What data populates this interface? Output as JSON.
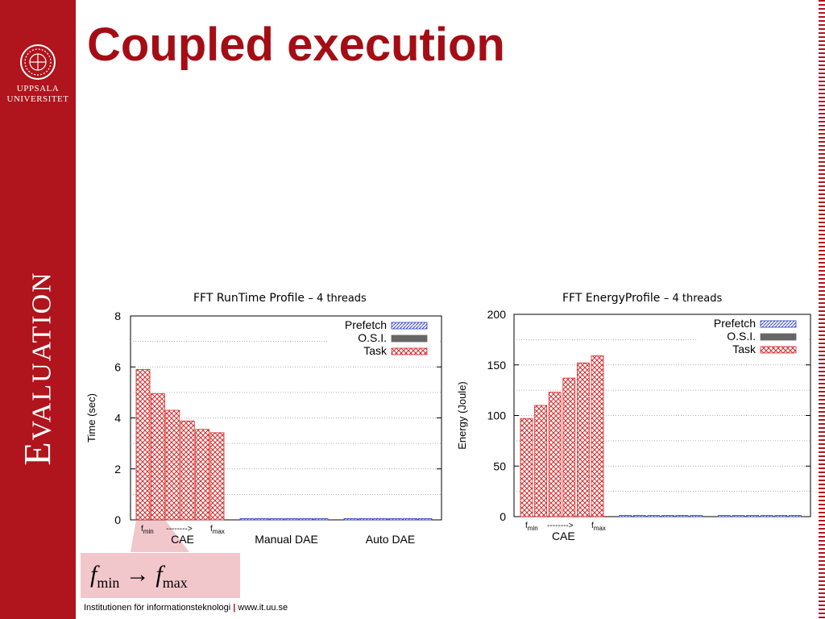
{
  "slide": {
    "title": "Coupled execution",
    "section": "Evaluation",
    "university_line1": "UPPSALA",
    "university_line2": "UNIVERSITET",
    "footer_text": "Institutionen för informationsteknologi",
    "footer_sep": "|",
    "footer_url": "www.it.uu.se",
    "callout": {
      "f": "f",
      "min": "min",
      "max": "max",
      "arrow": "→"
    },
    "accent_color": "#b0141c",
    "title_color": "#a50d15"
  },
  "chart_data": [
    {
      "type": "bar",
      "title": "FFT RunTime Profile",
      "subtitle": "– 4 threads",
      "ylabel": "Time (sec)",
      "ylim": [
        0,
        8
      ],
      "yticks": [
        "0",
        "2",
        "4",
        "6",
        "8"
      ],
      "ytick_values": [
        0,
        2,
        4,
        6,
        8
      ],
      "groups": [
        {
          "label": "CAE",
          "count": 6,
          "sub_start": "f",
          "sub_start_sub": "min",
          "sub_arrow": "-------->",
          "sub_end": "f",
          "sub_end_sub": "max"
        },
        {
          "label": "Manual DAE",
          "count": 6
        },
        {
          "label": "Auto DAE",
          "count": 6
        }
      ],
      "series": [
        {
          "name": "Prefetch",
          "pattern": "hatch",
          "color": "#2f3fbf",
          "values": [
            0,
            0,
            0,
            0,
            0,
            0,
            0.05,
            0.05,
            0.05,
            0.05,
            0.05,
            0.05,
            0.05,
            0.05,
            0.05,
            0.05,
            0.05,
            0.05
          ]
        },
        {
          "name": "O.S.I.",
          "pattern": "solid",
          "color": "#666666",
          "values": [
            0,
            0,
            0,
            0,
            0,
            0,
            0,
            0,
            0,
            0,
            0,
            0,
            0,
            0,
            0,
            0,
            0,
            0
          ]
        },
        {
          "name": "Task",
          "pattern": "cross",
          "color": "#d42a2a",
          "values": [
            5.9,
            4.95,
            4.3,
            3.88,
            3.55,
            3.42,
            0,
            0,
            0,
            0,
            0,
            0,
            0,
            0,
            0,
            0,
            0,
            0
          ]
        }
      ],
      "legend_position": "top-right"
    },
    {
      "type": "bar",
      "title": "FFT EnergyProfile",
      "subtitle": "– 4 threads",
      "ylabel": "Energy (Joule)",
      "ylim": [
        0,
        200
      ],
      "yticks": [
        "0",
        "50",
        "100",
        "150",
        "200"
      ],
      "ytick_values": [
        0,
        50,
        100,
        150,
        200
      ],
      "groups": [
        {
          "label": "CAE",
          "count": 6,
          "sub_start": "f",
          "sub_start_sub": "min",
          "sub_arrow": "-------->",
          "sub_end": "f",
          "sub_end_sub": "max"
        },
        {
          "label": "",
          "count": 6
        },
        {
          "label": "",
          "count": 6
        }
      ],
      "series": [
        {
          "name": "Prefetch",
          "pattern": "hatch",
          "color": "#2f3fbf",
          "values": [
            0,
            0,
            0,
            0,
            0,
            0,
            0.5,
            0.5,
            0.5,
            0.5,
            0.5,
            0.5,
            0.5,
            0.5,
            0.5,
            0.5,
            0.5,
            0.5
          ]
        },
        {
          "name": "O.S.I.",
          "pattern": "solid",
          "color": "#666666",
          "values": [
            0,
            0,
            0,
            0,
            0,
            0,
            0,
            0,
            0,
            0,
            0,
            0,
            0,
            0,
            0,
            0,
            0,
            0
          ]
        },
        {
          "name": "Task",
          "pattern": "cross",
          "color": "#d42a2a",
          "values": [
            97,
            110,
            123,
            137,
            152,
            159,
            0,
            0,
            0,
            0,
            0,
            0,
            0,
            0,
            0,
            0,
            0,
            0
          ]
        }
      ],
      "legend_position": "top-right"
    }
  ]
}
